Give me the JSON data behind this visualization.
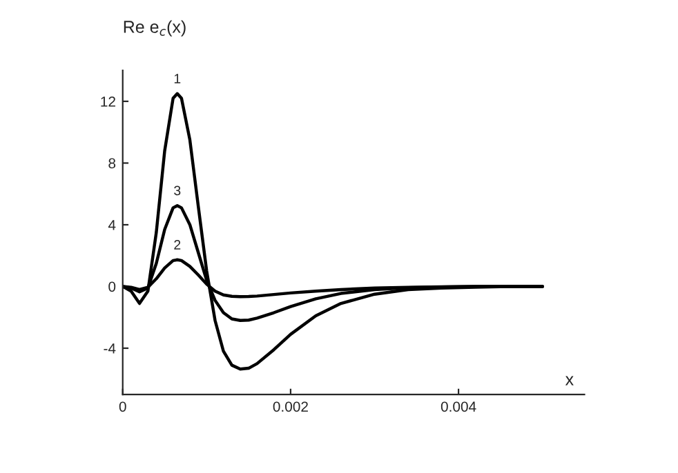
{
  "chart_data": {
    "type": "line",
    "xlabel": "x",
    "ylabel": "Re e$_{c}$(x)",
    "x": [
      0,
      0.0001,
      0.0002,
      0.0003,
      0.0004,
      0.0005,
      0.0006,
      0.00065,
      0.0007,
      0.0008,
      0.0009,
      0.001,
      0.0011,
      0.0012,
      0.0013,
      0.0014,
      0.0015,
      0.0016,
      0.0018,
      0.002,
      0.0023,
      0.0026,
      0.003,
      0.0034,
      0.0038,
      0.0042,
      0.0046,
      0.005
    ],
    "series": [
      {
        "name": "1",
        "color": "#000000",
        "values": [
          0,
          -0.3,
          -1.1,
          -0.3,
          3.5,
          8.8,
          12.2,
          12.5,
          12.2,
          9.5,
          5.2,
          1.0,
          -2.2,
          -4.2,
          -5.1,
          -5.35,
          -5.3,
          -5.0,
          -4.1,
          -3.1,
          -1.9,
          -1.1,
          -0.5,
          -0.2,
          -0.1,
          -0.05,
          0,
          0
        ]
      },
      {
        "name": "2",
        "color": "#000000",
        "values": [
          0,
          -0.05,
          -0.2,
          -0.05,
          0.5,
          1.2,
          1.68,
          1.73,
          1.68,
          1.3,
          0.75,
          0.15,
          -0.3,
          -0.55,
          -0.64,
          -0.66,
          -0.65,
          -0.62,
          -0.52,
          -0.42,
          -0.3,
          -0.2,
          -0.1,
          -0.05,
          -0.02,
          0,
          0,
          0
        ]
      },
      {
        "name": "3",
        "color": "#000000",
        "values": [
          0,
          -0.1,
          -0.35,
          -0.1,
          1.5,
          3.7,
          5.1,
          5.24,
          5.1,
          4.0,
          2.2,
          0.4,
          -0.9,
          -1.7,
          -2.1,
          -2.2,
          -2.18,
          -2.05,
          -1.7,
          -1.3,
          -0.8,
          -0.45,
          -0.2,
          -0.08,
          -0.03,
          0,
          0,
          0
        ]
      }
    ],
    "xlim": [
      0,
      0.0055
    ],
    "xticks": [
      0,
      0.002,
      0.004
    ],
    "ylim": [
      -7,
      14
    ],
    "yticks": [
      -4,
      0,
      4,
      8,
      12
    ],
    "grid": false,
    "legend": false,
    "marker": "none",
    "line_style": "solid"
  }
}
